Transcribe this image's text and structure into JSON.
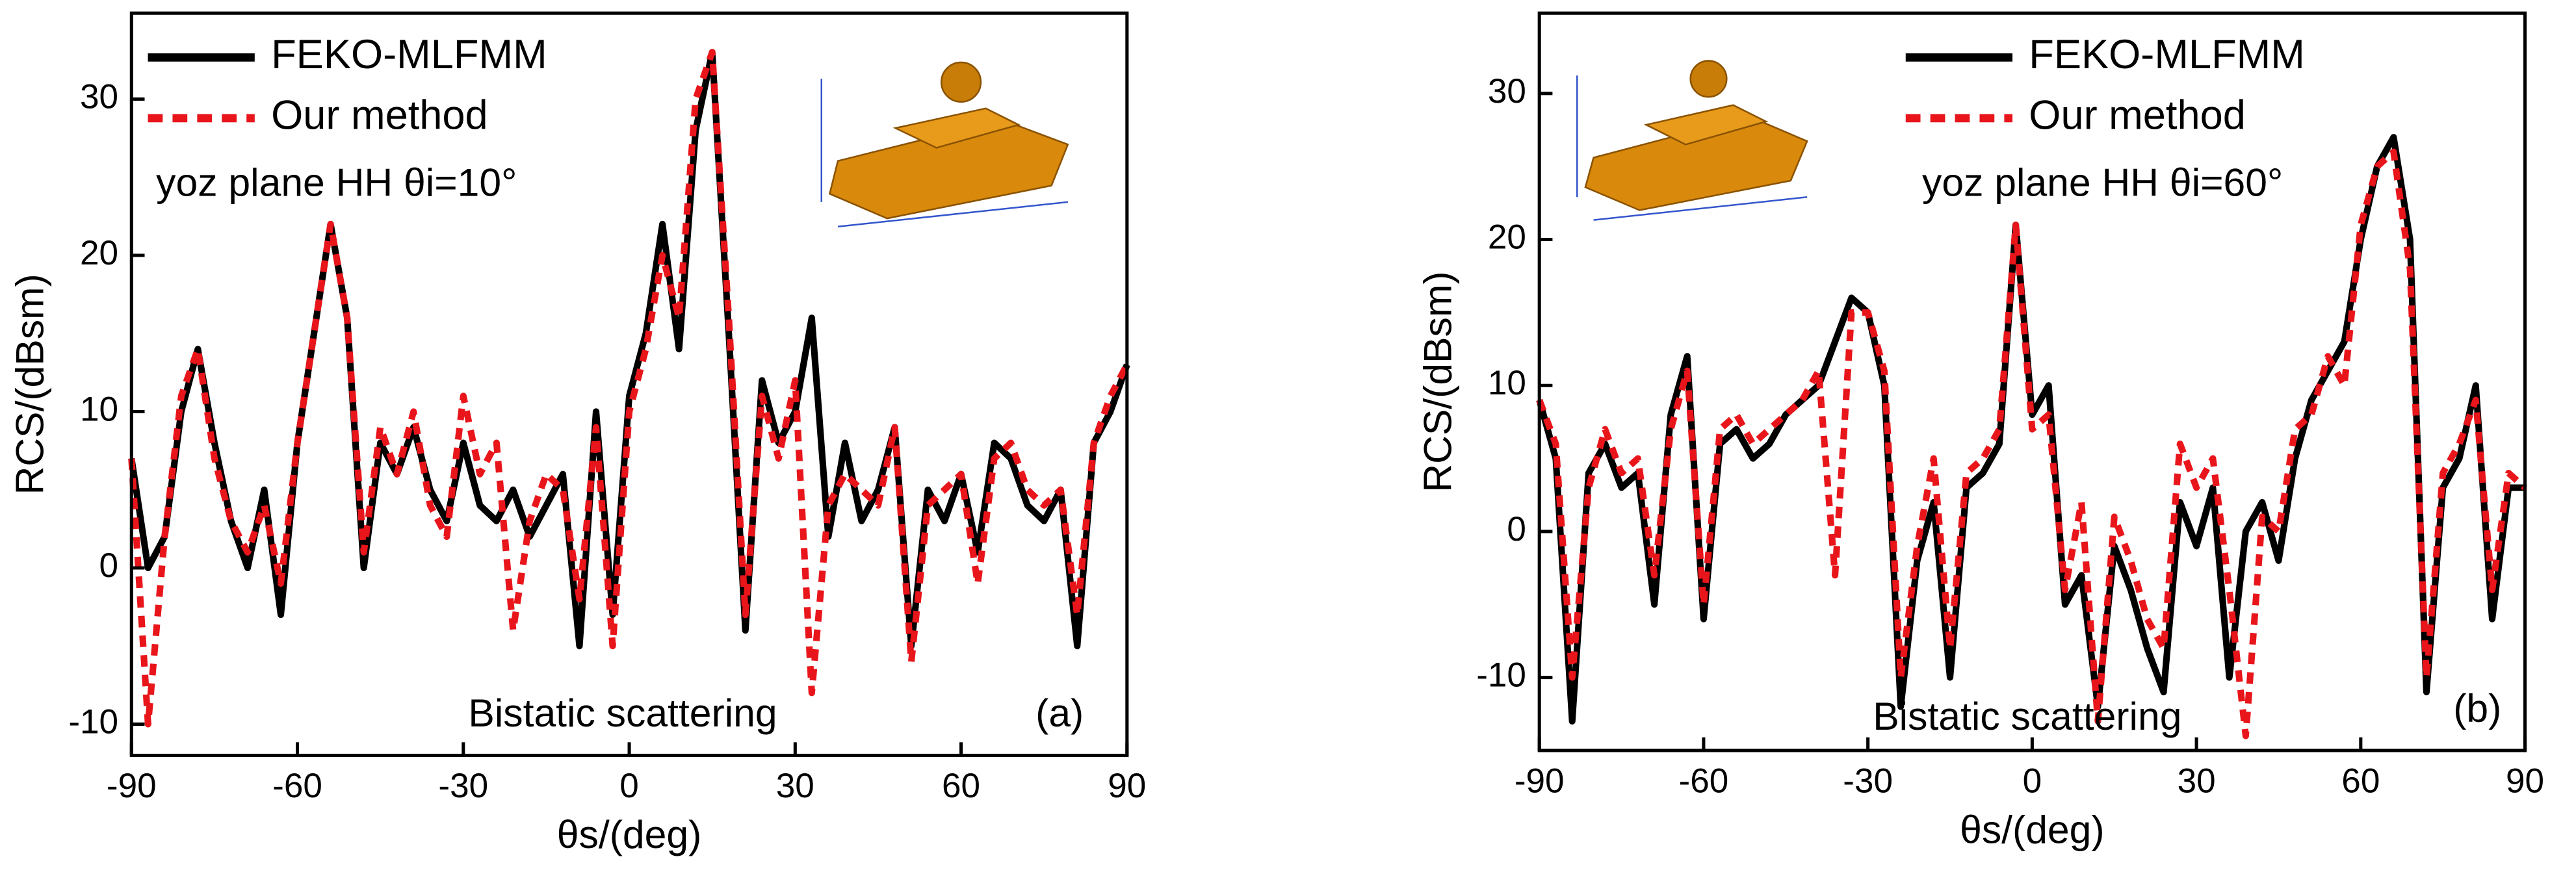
{
  "chart_data": [
    {
      "type": "line",
      "annotation": "yoz plane HH θi=10°",
      "note": "Bistatic scattering",
      "panel": "(a)",
      "x_label": "θs/(deg)",
      "y_label": "RCS/(dBsm)",
      "xlim": [
        -90,
        90
      ],
      "xticks": [
        -90,
        -60,
        -30,
        0,
        30,
        60,
        90
      ],
      "ylim": [
        -12,
        35.5
      ],
      "yticks": [
        -10,
        0,
        10,
        20,
        30
      ],
      "x": [
        -90,
        -87,
        -84,
        -81,
        -78,
        -75,
        -72,
        -69,
        -66,
        -63,
        -60,
        -57,
        -54,
        -51,
        -48,
        -45,
        -42,
        -39,
        -36,
        -33,
        -30,
        -27,
        -24,
        -21,
        -18,
        -15,
        -12,
        -9,
        -6,
        -3,
        0,
        3,
        6,
        9,
        12,
        15,
        18,
        21,
        24,
        27,
        30,
        33,
        36,
        39,
        42,
        45,
        48,
        51,
        54,
        57,
        60,
        63,
        66,
        69,
        72,
        75,
        78,
        81,
        84,
        87,
        90
      ],
      "series": [
        {
          "name": "FEKO-MLFMM",
          "color": "#000000",
          "values": [
            7,
            0,
            2,
            10,
            14,
            8,
            3,
            0,
            5,
            -3,
            8,
            15,
            22,
            16,
            0,
            8,
            6,
            9,
            5,
            3,
            8,
            4,
            3,
            5,
            2,
            4,
            6,
            -5,
            10,
            -3,
            11,
            15,
            22,
            14,
            28,
            33,
            15,
            -4,
            12,
            8,
            10,
            16,
            2,
            8,
            3,
            5,
            9,
            -5,
            5,
            3,
            6,
            1,
            8,
            7,
            4,
            3,
            5,
            -5,
            8,
            10,
            13
          ]
        },
        {
          "name": "Our method",
          "color": "#e8151b",
          "values": [
            7,
            -10,
            2,
            11,
            14,
            7,
            3,
            1,
            4,
            -1,
            8,
            15,
            22,
            16,
            1,
            9,
            6,
            10,
            4,
            2,
            11,
            6,
            8,
            -4,
            3,
            6,
            5,
            -2,
            9,
            -5,
            10,
            14,
            20,
            16,
            30,
            33,
            16,
            -3,
            11,
            7,
            12,
            -8,
            4,
            6,
            5,
            4,
            9,
            -6,
            4,
            5,
            6,
            -1,
            7,
            8,
            5,
            4,
            5,
            -3,
            8,
            11,
            13
          ]
        }
      ]
    },
    {
      "type": "line",
      "annotation": "yoz plane HH θi=60°",
      "note": "Bistatic scattering",
      "panel": "(b)",
      "x_label": "θs/(deg)",
      "y_label": "RCS/(dBsm)",
      "xlim": [
        -90,
        90
      ],
      "xticks": [
        -90,
        -60,
        -30,
        0,
        30,
        60,
        90
      ],
      "ylim": [
        -15,
        35.5
      ],
      "yticks": [
        -10,
        0,
        10,
        20,
        30
      ],
      "x": [
        -90,
        -87,
        -84,
        -81,
        -78,
        -75,
        -72,
        -69,
        -66,
        -63,
        -60,
        -57,
        -54,
        -51,
        -48,
        -45,
        -42,
        -39,
        -36,
        -33,
        -30,
        -27,
        -24,
        -21,
        -18,
        -15,
        -12,
        -9,
        -6,
        -3,
        0,
        3,
        6,
        9,
        12,
        15,
        18,
        21,
        24,
        27,
        30,
        33,
        36,
        39,
        42,
        45,
        48,
        51,
        54,
        57,
        60,
        63,
        66,
        69,
        72,
        75,
        78,
        81,
        84,
        87,
        90
      ],
      "series": [
        {
          "name": "FEKO-MLFMM",
          "color": "#000000",
          "values": [
            9,
            5,
            -13,
            4,
            6,
            3,
            4,
            -5,
            8,
            12,
            -6,
            6,
            7,
            5,
            6,
            8,
            9,
            10,
            13,
            16,
            15,
            10,
            -12,
            -2,
            2,
            -10,
            3,
            4,
            6,
            21,
            8,
            10,
            -5,
            -3,
            -12,
            -1,
            -4,
            -8,
            -11,
            2,
            -1,
            3,
            -10,
            0,
            2,
            -2,
            5,
            9,
            11,
            13,
            20,
            25,
            27,
            20,
            -11,
            3,
            5,
            10,
            -6,
            3,
            3
          ]
        },
        {
          "name": "Our method",
          "color": "#e8151b",
          "values": [
            9,
            6,
            -10,
            3,
            7,
            4,
            5,
            -3,
            7,
            11,
            -5,
            7,
            8,
            6,
            7,
            8,
            9,
            11,
            -3,
            15,
            15,
            11,
            -10,
            -1,
            5,
            -8,
            4,
            5,
            7,
            21,
            7,
            8,
            -4,
            2,
            -13,
            1,
            -2,
            -6,
            -8,
            6,
            3,
            5,
            -4,
            -14,
            1,
            0,
            7,
            8,
            12,
            10,
            21,
            25,
            26,
            18,
            -10,
            4,
            6,
            9,
            -4,
            4,
            3
          ]
        }
      ]
    }
  ]
}
